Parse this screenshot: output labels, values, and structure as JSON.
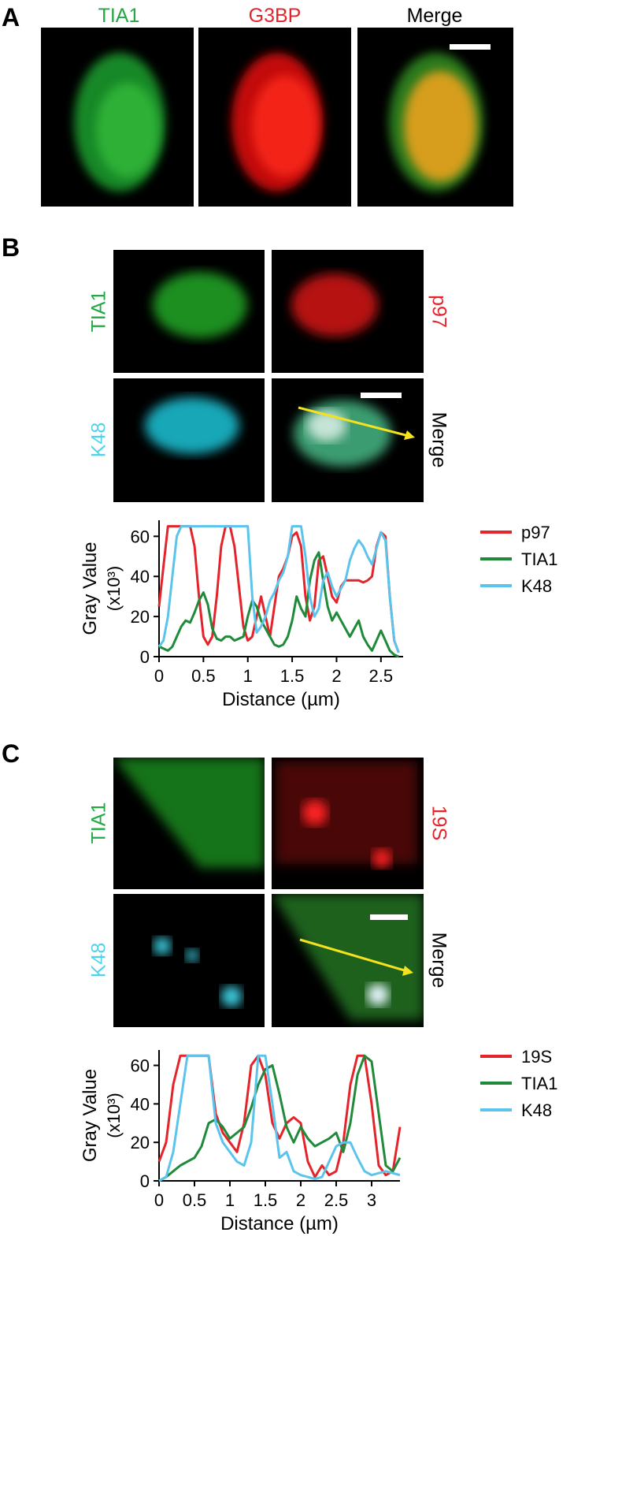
{
  "panel_a": {
    "letter": "A",
    "labels": {
      "c1": "TIA1",
      "c2": "G3BP",
      "c3": "Merge"
    },
    "colors": {
      "c1": "#22a845",
      "c2": "#e4242a",
      "c3": "#000000"
    }
  },
  "panel_b": {
    "letter": "B",
    "labels": {
      "tia1": "TIA1",
      "p97": "p97",
      "k48": "K48",
      "merge": "Merge"
    },
    "colors": {
      "tia1": "#22a845",
      "p97": "#e4242a",
      "k48": "#4fd3ec",
      "merge": "#000000"
    }
  },
  "panel_c": {
    "letter": "C",
    "labels": {
      "tia1": "TIA1",
      "s19": "19S",
      "k48": "K48",
      "merge": "Merge"
    },
    "colors": {
      "tia1": "#22a845",
      "s19": "#e4242a",
      "k48": "#4fd3ec",
      "merge": "#000000"
    }
  },
  "chart_data": [
    {
      "type": "line",
      "panel": "B",
      "xlabel": "Distance (µm)",
      "ylabel": "Gray Value",
      "ylabel_unit": "(x10³)",
      "xlim": [
        0,
        2.75
      ],
      "ylim": [
        0,
        68
      ],
      "xticks": [
        0,
        0.5,
        1,
        1.5,
        2,
        2.5
      ],
      "xtick_labels": [
        "0",
        "0.5",
        "1",
        "1.5",
        "2",
        "2.5"
      ],
      "yticks": [
        0,
        20,
        40,
        60
      ],
      "ytick_labels": [
        "0",
        "20",
        "40",
        "60"
      ],
      "legend_position": "right",
      "series": [
        {
          "name": "p97",
          "color": "#e4242a",
          "x": [
            0,
            0.05,
            0.1,
            0.15,
            0.2,
            0.25,
            0.3,
            0.35,
            0.4,
            0.45,
            0.5,
            0.55,
            0.6,
            0.65,
            0.7,
            0.75,
            0.8,
            0.85,
            0.9,
            0.95,
            1.0,
            1.05,
            1.1,
            1.15,
            1.2,
            1.25,
            1.3,
            1.35,
            1.4,
            1.45,
            1.5,
            1.55,
            1.6,
            1.65,
            1.7,
            1.75,
            1.8,
            1.85,
            1.9,
            1.95,
            2.0,
            2.05,
            2.1,
            2.15,
            2.2,
            2.25,
            2.3,
            2.35,
            2.4,
            2.45,
            2.5,
            2.55,
            2.6,
            2.65,
            2.7
          ],
          "y": [
            25,
            45,
            65,
            65,
            65,
            65,
            65,
            65,
            55,
            30,
            10,
            6,
            10,
            30,
            55,
            65,
            65,
            55,
            35,
            15,
            8,
            10,
            20,
            30,
            20,
            10,
            25,
            40,
            44,
            50,
            60,
            62,
            55,
            30,
            18,
            25,
            48,
            50,
            40,
            30,
            27,
            35,
            38,
            38,
            38,
            38,
            37,
            38,
            40,
            55,
            62,
            60,
            30,
            8,
            2
          ]
        },
        {
          "name": "TIA1",
          "color": "#1f8a3a",
          "x": [
            0,
            0.05,
            0.1,
            0.15,
            0.2,
            0.25,
            0.3,
            0.35,
            0.4,
            0.45,
            0.5,
            0.55,
            0.6,
            0.65,
            0.7,
            0.75,
            0.8,
            0.85,
            0.9,
            0.95,
            1.0,
            1.05,
            1.1,
            1.15,
            1.2,
            1.25,
            1.3,
            1.35,
            1.4,
            1.45,
            1.5,
            1.55,
            1.6,
            1.65,
            1.7,
            1.75,
            1.8,
            1.85,
            1.9,
            1.95,
            2.0,
            2.05,
            2.1,
            2.15,
            2.2,
            2.25,
            2.3,
            2.35,
            2.4,
            2.45,
            2.5,
            2.55,
            2.6,
            2.65,
            2.7
          ],
          "y": [
            5,
            4,
            3,
            5,
            10,
            15,
            18,
            17,
            22,
            28,
            32,
            26,
            14,
            9,
            8,
            10,
            10,
            8,
            9,
            10,
            20,
            28,
            25,
            18,
            14,
            10,
            6,
            5,
            6,
            10,
            18,
            30,
            24,
            20,
            38,
            48,
            52,
            38,
            25,
            18,
            22,
            18,
            14,
            10,
            14,
            18,
            10,
            6,
            3,
            8,
            13,
            8,
            3,
            1,
            0
          ]
        },
        {
          "name": "K48",
          "color": "#5bc4ec",
          "x": [
            0,
            0.05,
            0.1,
            0.15,
            0.2,
            0.25,
            0.3,
            0.35,
            0.4,
            0.45,
            0.5,
            0.55,
            0.6,
            0.65,
            0.7,
            0.75,
            0.8,
            0.85,
            0.9,
            0.95,
            1.0,
            1.05,
            1.1,
            1.15,
            1.2,
            1.25,
            1.3,
            1.35,
            1.4,
            1.45,
            1.5,
            1.55,
            1.6,
            1.65,
            1.7,
            1.75,
            1.8,
            1.85,
            1.9,
            1.95,
            2.0,
            2.05,
            2.1,
            2.15,
            2.2,
            2.25,
            2.3,
            2.35,
            2.4,
            2.45,
            2.5,
            2.55,
            2.6,
            2.65,
            2.7
          ],
          "y": [
            5,
            8,
            20,
            40,
            60,
            65,
            65,
            65,
            65,
            65,
            65,
            65,
            65,
            65,
            65,
            65,
            65,
            65,
            65,
            65,
            65,
            30,
            12,
            15,
            20,
            28,
            32,
            38,
            42,
            50,
            65,
            65,
            65,
            50,
            30,
            20,
            24,
            38,
            42,
            35,
            30,
            34,
            38,
            48,
            54,
            58,
            55,
            50,
            46,
            54,
            62,
            58,
            30,
            8,
            2
          ]
        }
      ]
    },
    {
      "type": "line",
      "panel": "C",
      "xlabel": "Distance (µm)",
      "ylabel": "Gray Value",
      "ylabel_unit": "(x10³)",
      "xlim": [
        0,
        3.4
      ],
      "ylim": [
        0,
        68
      ],
      "xticks": [
        0,
        0.5,
        1,
        1.5,
        2,
        2.5,
        3
      ],
      "xtick_labels": [
        "0",
        "0.5",
        "1",
        "1.5",
        "2",
        "2.5",
        "3"
      ],
      "yticks": [
        0,
        20,
        40,
        60
      ],
      "ytick_labels": [
        "0",
        "20",
        "40",
        "60"
      ],
      "legend_position": "right",
      "series": [
        {
          "name": "19S",
          "color": "#e4242a",
          "x": [
            0,
            0.1,
            0.2,
            0.3,
            0.4,
            0.5,
            0.6,
            0.7,
            0.8,
            0.9,
            1.0,
            1.1,
            1.2,
            1.3,
            1.4,
            1.5,
            1.6,
            1.7,
            1.8,
            1.9,
            2.0,
            2.1,
            2.2,
            2.3,
            2.4,
            2.5,
            2.6,
            2.7,
            2.8,
            2.9,
            3.0,
            3.1,
            3.2,
            3.3,
            3.4
          ],
          "y": [
            10,
            20,
            50,
            65,
            65,
            65,
            65,
            65,
            35,
            25,
            20,
            15,
            30,
            60,
            65,
            55,
            30,
            22,
            30,
            33,
            30,
            10,
            2,
            8,
            3,
            5,
            20,
            50,
            65,
            65,
            40,
            8,
            3,
            5,
            28
          ]
        },
        {
          "name": "TIA1",
          "color": "#1f8a3a",
          "x": [
            0,
            0.1,
            0.2,
            0.3,
            0.4,
            0.5,
            0.6,
            0.7,
            0.8,
            0.9,
            1.0,
            1.1,
            1.2,
            1.3,
            1.4,
            1.5,
            1.6,
            1.7,
            1.8,
            1.9,
            2.0,
            2.1,
            2.2,
            2.3,
            2.4,
            2.5,
            2.6,
            2.7,
            2.8,
            2.9,
            3.0,
            3.1,
            3.2,
            3.3,
            3.4
          ],
          "y": [
            0,
            2,
            5,
            8,
            10,
            12,
            18,
            30,
            32,
            28,
            22,
            25,
            28,
            38,
            50,
            58,
            60,
            45,
            28,
            20,
            28,
            22,
            18,
            20,
            22,
            25,
            15,
            30,
            55,
            65,
            62,
            35,
            8,
            5,
            12
          ]
        },
        {
          "name": "K48",
          "color": "#5bc4ec",
          "x": [
            0,
            0.1,
            0.2,
            0.3,
            0.4,
            0.5,
            0.6,
            0.7,
            0.8,
            0.9,
            1.0,
            1.1,
            1.2,
            1.3,
            1.4,
            1.5,
            1.6,
            1.7,
            1.8,
            1.9,
            2.0,
            2.1,
            2.2,
            2.3,
            2.4,
            2.5,
            2.6,
            2.7,
            2.8,
            2.9,
            3.0,
            3.1,
            3.2,
            3.3,
            3.4
          ],
          "y": [
            0,
            2,
            15,
            40,
            65,
            65,
            65,
            65,
            30,
            20,
            15,
            10,
            8,
            20,
            65,
            65,
            40,
            12,
            15,
            5,
            3,
            2,
            1,
            2,
            10,
            18,
            20,
            20,
            12,
            5,
            3,
            4,
            5,
            4,
            3
          ]
        }
      ]
    }
  ]
}
